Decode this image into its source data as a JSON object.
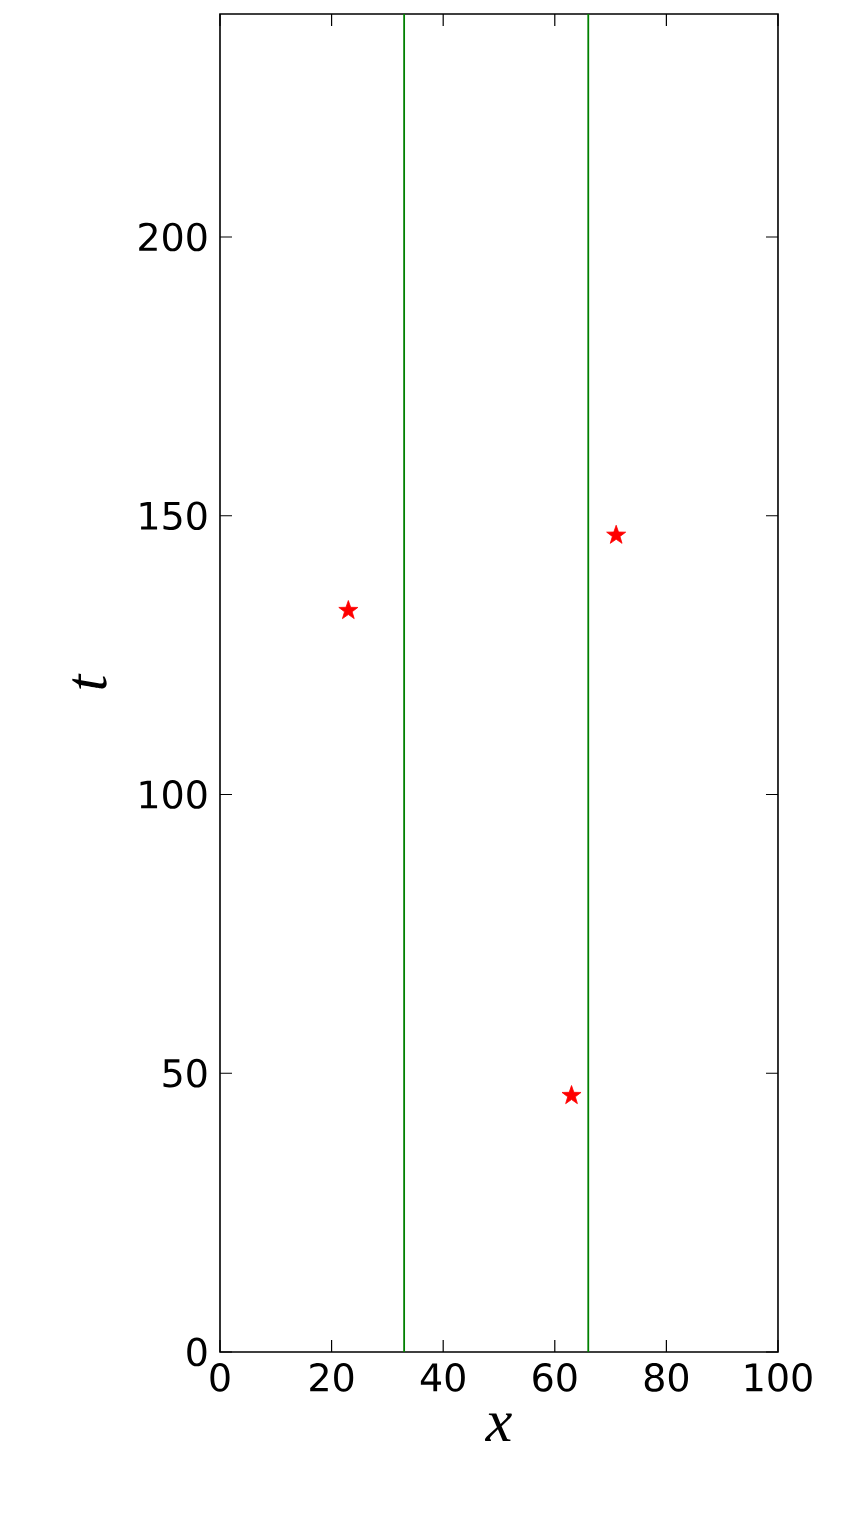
{
  "chart_data": {
    "type": "scatter",
    "xlabel": "x",
    "ylabel": "t",
    "xlim": [
      0,
      100
    ],
    "ylim": [
      0,
      240
    ],
    "xticks": [
      0,
      20,
      40,
      60,
      80,
      100
    ],
    "yticks": [
      0,
      50,
      100,
      150,
      200
    ],
    "marker": "star",
    "grid": false,
    "x": [
      23,
      71,
      63
    ],
    "series": [
      {
        "color": "#ff0000",
        "values": [
          133,
          146.5,
          46
        ]
      }
    ],
    "ref_lines": [
      {
        "axis": "x",
        "value": 33,
        "color": "#008000"
      },
      {
        "axis": "x",
        "value": 66,
        "color": "#008000"
      }
    ]
  }
}
